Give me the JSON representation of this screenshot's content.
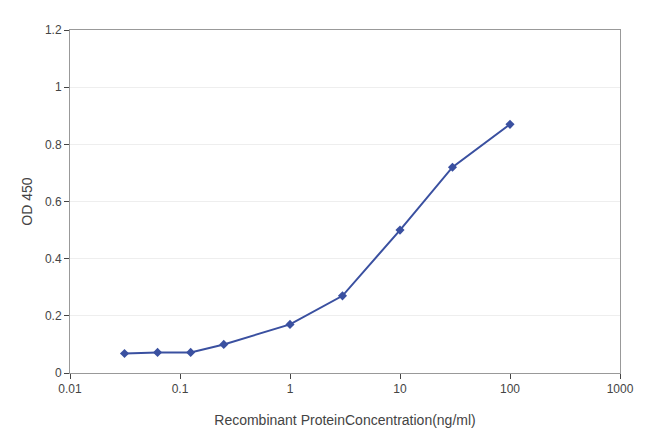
{
  "chart_data": {
    "type": "line",
    "x": [
      0.0313,
      0.0625,
      0.125,
      0.25,
      1.0,
      3.0,
      10.0,
      30.0,
      100.0
    ],
    "values": [
      0.068,
      0.072,
      0.072,
      0.1,
      0.17,
      0.27,
      0.5,
      0.72,
      0.87
    ],
    "color": "#3a50a0",
    "marker": "diamond",
    "xlabel": "Recombinant ProteinConcentration(ng/ml)",
    "ylabel": "OD 450",
    "log": "x",
    "xlim": [
      0.01,
      1000
    ],
    "xticks": [
      0.01,
      0.1,
      1,
      10,
      100,
      1000
    ],
    "ylim": [
      0,
      1.2
    ],
    "yticks": [
      0,
      0.2,
      0.4,
      0.6,
      0.8,
      1,
      1.2
    ],
    "grid": "y"
  }
}
